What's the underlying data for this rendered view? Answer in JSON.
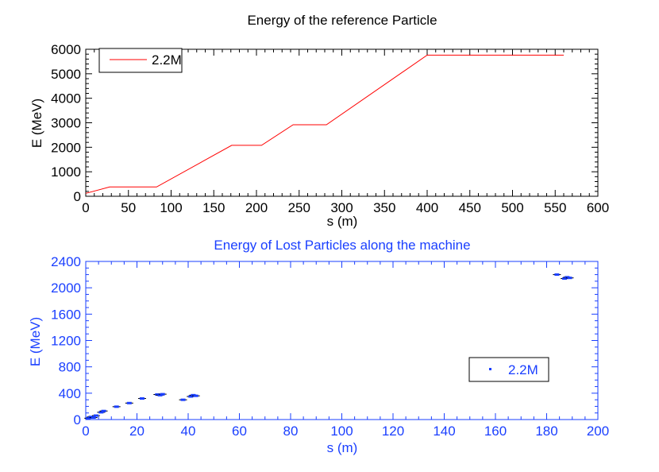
{
  "chart_data": [
    {
      "type": "line",
      "title": "Energy of the reference Particle",
      "xlabel": "s (m)",
      "ylabel": "E (MeV)",
      "xlim": [
        0,
        600
      ],
      "ylim": [
        0,
        6000
      ],
      "xticks": [
        0,
        50,
        100,
        150,
        200,
        250,
        300,
        350,
        400,
        450,
        500,
        550,
        600
      ],
      "yticks": [
        0,
        1000,
        2000,
        3000,
        4000,
        5000,
        6000
      ],
      "color": "#ff0000",
      "legend": {
        "location": "top-left",
        "entries": [
          "2.2M"
        ]
      },
      "series": [
        {
          "name": "2.2M",
          "x": [
            0,
            28,
            83,
            171,
            206,
            243,
            282,
            400,
            560
          ],
          "y": [
            120,
            380,
            380,
            2080,
            2080,
            2920,
            2920,
            5760,
            5760
          ]
        }
      ]
    },
    {
      "type": "scatter",
      "title": "Energy of Lost Particles along the machine",
      "xlabel": "s (m)",
      "ylabel": "E (MeV)",
      "xlim": [
        0,
        200
      ],
      "ylim": [
        0,
        2400
      ],
      "xticks": [
        0,
        20,
        40,
        60,
        80,
        100,
        120,
        140,
        160,
        180,
        200
      ],
      "yticks": [
        0,
        400,
        800,
        1200,
        1600,
        2000,
        2400
      ],
      "color": "#1a3fff",
      "legend": {
        "location": "center-right",
        "entries": [
          "2.2M"
        ]
      },
      "series": [
        {
          "name": "2.2M",
          "x": [
            1,
            2,
            3,
            4,
            6,
            7,
            12,
            17,
            22,
            28,
            29,
            30,
            38,
            41,
            42,
            43,
            184,
            187,
            188,
            189
          ],
          "y": [
            20,
            40,
            30,
            60,
            110,
            130,
            195,
            250,
            320,
            380,
            370,
            385,
            300,
            350,
            370,
            360,
            2200,
            2140,
            2160,
            2150
          ]
        }
      ]
    }
  ]
}
